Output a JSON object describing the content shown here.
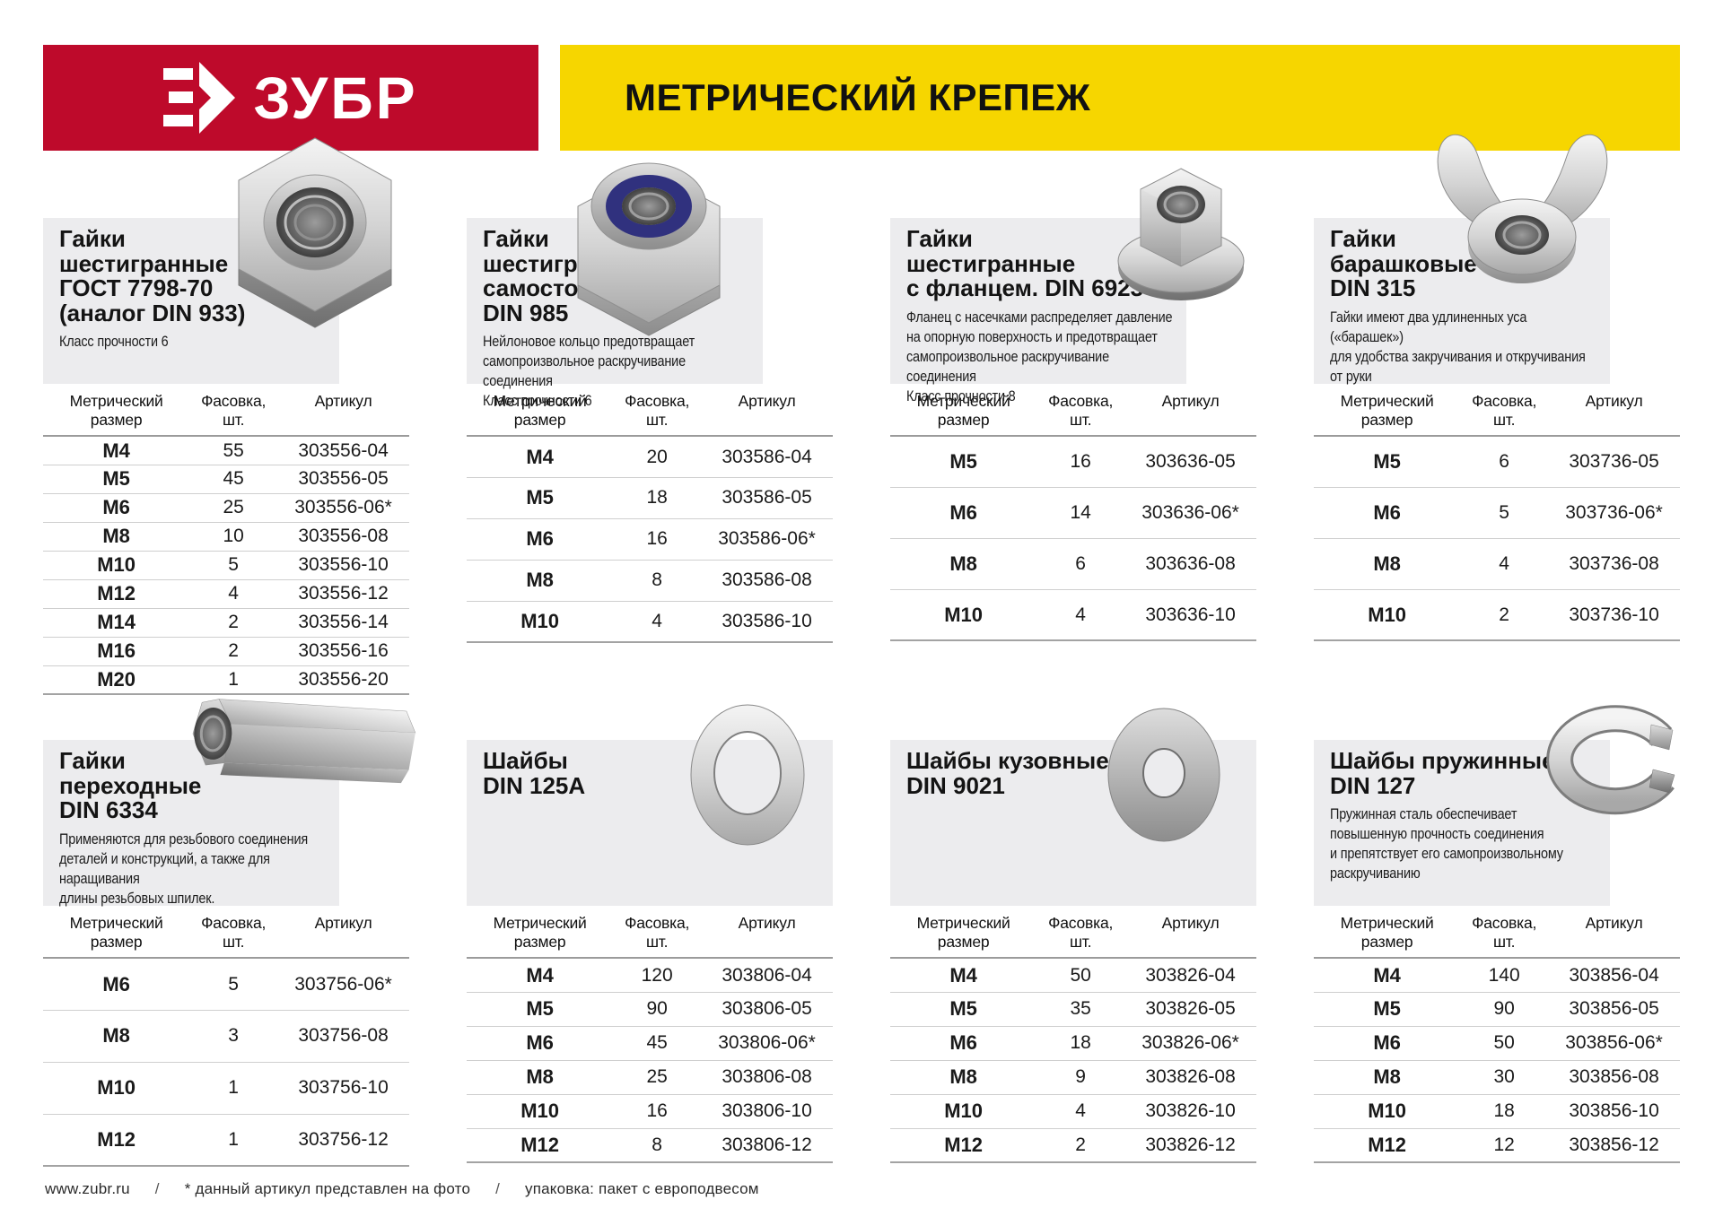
{
  "header": {
    "logo_text": "ЗУБР",
    "title": "МЕТРИЧЕСКИЙ КРЕПЕЖ",
    "brand_red": "#be0a2b",
    "brand_yellow": "#f6d600",
    "logo_icon": "zubr-arrow-icon"
  },
  "table_headers": {
    "size": "Метрический размер",
    "pack": "Фасовка,",
    "pack_unit": "шт.",
    "article": "Артикул"
  },
  "cards": [
    {
      "title_lines": [
        "Гайки",
        "шестигранные",
        "ГОСТ 7798-70",
        "(аналог DIN 933)"
      ],
      "desc_lines": [
        "Класс прочности 6"
      ],
      "photo": "hex-nut",
      "rows": [
        [
          "М4",
          "55",
          "303556-04"
        ],
        [
          "М5",
          "45",
          "303556-05"
        ],
        [
          "М6",
          "25",
          "303556-06*"
        ],
        [
          "М8",
          "10",
          "303556-08"
        ],
        [
          "М10",
          "5",
          "303556-10"
        ],
        [
          "М12",
          "4",
          "303556-12"
        ],
        [
          "М14",
          "2",
          "303556-14"
        ],
        [
          "М16",
          "2",
          "303556-16"
        ],
        [
          "М20",
          "1",
          "303556-20"
        ]
      ]
    },
    {
      "title_lines": [
        "Гайки",
        "шестигранные",
        "самостопорящиеся",
        "DIN 985"
      ],
      "desc_lines": [
        "Нейлоновое кольцо предотвращает",
        "самопроизвольное раскручивание соединения",
        "Класс прочности 6"
      ],
      "photo": "nylon-lock-nut",
      "rows": [
        [
          "М4",
          "20",
          "303586-04"
        ],
        [
          "М5",
          "18",
          "303586-05"
        ],
        [
          "М6",
          "16",
          "303586-06*"
        ],
        [
          "М8",
          "8",
          "303586-08"
        ],
        [
          "М10",
          "4",
          "303586-10"
        ]
      ]
    },
    {
      "title_lines": [
        "Гайки",
        "шестигранные",
        "с фланцем.  DIN 6923"
      ],
      "desc_lines": [
        "Фланец с насечками распределяет давление",
        "на опорную поверхность и предотвращает",
        "самопроизвольное раскручивание соединения",
        "Класс прочности 8"
      ],
      "photo": "flange-nut",
      "rows": [
        [
          "М5",
          "16",
          "303636-05"
        ],
        [
          "М6",
          "14",
          "303636-06*"
        ],
        [
          "М8",
          "6",
          "303636-08"
        ],
        [
          "М10",
          "4",
          "303636-10"
        ]
      ]
    },
    {
      "title_lines": [
        "Гайки",
        "барашковые",
        "DIN 315"
      ],
      "desc_lines": [
        "Гайки имеют два удлиненных уса («барашек»)",
        "для удобства закручивания и откручивания",
        "от руки"
      ],
      "photo": "wing-nut",
      "rows": [
        [
          "М5",
          "6",
          "303736-05"
        ],
        [
          "М6",
          "5",
          "303736-06*"
        ],
        [
          "М8",
          "4",
          "303736-08"
        ],
        [
          "М10",
          "2",
          "303736-10"
        ]
      ]
    },
    {
      "title_lines": [
        "Гайки",
        "переходные",
        "DIN 6334"
      ],
      "desc_lines": [
        "Применяются для резьбового соединения",
        "деталей и конструкций, а также для наращивания",
        "длины резьбовых шпилек."
      ],
      "photo": "coupling-nut",
      "rows": [
        [
          "М6",
          "5",
          "303756-06*"
        ],
        [
          "М8",
          "3",
          "303756-08"
        ],
        [
          "М10",
          "1",
          "303756-10"
        ],
        [
          "М12",
          "1",
          "303756-12"
        ]
      ]
    },
    {
      "title_lines": [
        "Шайбы",
        "DIN 125A"
      ],
      "desc_lines": [],
      "photo": "flat-washer",
      "rows": [
        [
          "М4",
          "120",
          "303806-04"
        ],
        [
          "М5",
          "90",
          "303806-05"
        ],
        [
          "М6",
          "45",
          "303806-06*"
        ],
        [
          "М8",
          "25",
          "303806-08"
        ],
        [
          "М10",
          "16",
          "303806-10"
        ],
        [
          "М12",
          "8",
          "303806-12"
        ]
      ]
    },
    {
      "title_lines": [
        "Шайбы кузовные",
        "DIN 9021"
      ],
      "desc_lines": [],
      "photo": "fender-washer",
      "rows": [
        [
          "М4",
          "50",
          "303826-04"
        ],
        [
          "М5",
          "35",
          "303826-05"
        ],
        [
          "М6",
          "18",
          "303826-06*"
        ],
        [
          "М8",
          "9",
          "303826-08"
        ],
        [
          "М10",
          "4",
          "303826-10"
        ],
        [
          "М12",
          "2",
          "303826-12"
        ]
      ]
    },
    {
      "title_lines": [
        "Шайбы пружинные",
        "DIN 127"
      ],
      "desc_lines": [
        "Пружинная сталь обеспечивает",
        "повышенную прочность соединения",
        "и препятствует его самопроизвольному",
        "раскручиванию"
      ],
      "photo": "spring-washer",
      "rows": [
        [
          "М4",
          "140",
          "303856-04"
        ],
        [
          "М5",
          "90",
          "303856-05"
        ],
        [
          "М6",
          "50",
          "303856-06*"
        ],
        [
          "М8",
          "30",
          "303856-08"
        ],
        [
          "М10",
          "18",
          "303856-10"
        ],
        [
          "М12",
          "12",
          "303856-12"
        ]
      ]
    }
  ],
  "footer": {
    "site": "www.zubr.ru",
    "separator": "/",
    "note": "* данный артикул представлен на фото",
    "packaging": "упаковка: пакет с европодвесом"
  }
}
